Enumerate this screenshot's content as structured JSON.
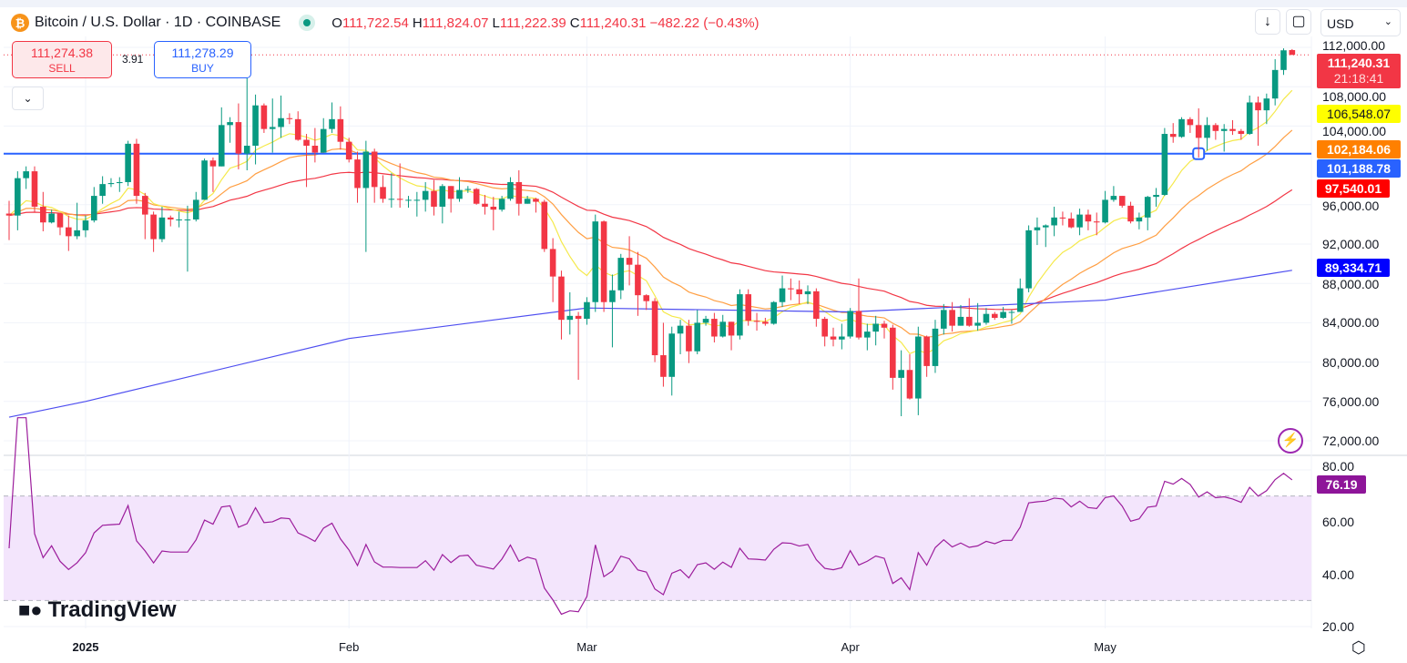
{
  "header": {
    "symbol_title": "Bitcoin / U.S. Dollar · 1D · COINBASE",
    "icon": "bitcoin-icon",
    "market_status": "open",
    "open_label": "O",
    "open": "111,722.54",
    "high_label": "H",
    "high": "111,824.07",
    "low_label": "L",
    "low": "111,222.39",
    "close_label": "C",
    "close": "111,240.31",
    "change": "−482.22 (−0.43%)"
  },
  "trade": {
    "sell_price": "111,274.38",
    "sell_label": "SELL",
    "spread": "3.91",
    "buy_price": "111,278.29",
    "buy_label": "BUY"
  },
  "toolbar": {
    "currency": "USD"
  },
  "logo": "TradingView",
  "colors": {
    "up": "#089981",
    "down": "#f23645",
    "ma_fast": "#f5e94a",
    "ma_mid": "#ff9f43",
    "ma_slow": "#f23645",
    "ma_long": "#4e4ef0",
    "hline": "#2962ff",
    "rsi": "#9c1d9c",
    "rsi_band": "#f3e5fc"
  },
  "chart_data": {
    "type": "candlestick",
    "price_axis": {
      "ticks": [
        "112,000.00",
        "108,000.00",
        "104,000.00",
        "96,000.00",
        "92,000.00",
        "88,000.00",
        "84,000.00",
        "80,000.00",
        "76,000.00",
        "72,000.00"
      ],
      "range": [
        72000,
        112000
      ]
    },
    "x_axis": {
      "ticks": [
        "2025",
        "Feb",
        "Mar",
        "Apr",
        "May"
      ]
    },
    "price_tags": {
      "last": "111,240.31",
      "countdown": "21:18:41",
      "ma_fast": "106,548.07",
      "ma_mid": "102,184.06",
      "hline": "101,188.78",
      "ma_slow": "97,540.01",
      "ma_long": "89,334.71"
    },
    "horizontal_line": 101188.78,
    "candles": [
      [
        "2024-12-23",
        95100,
        96400,
        92400,
        94900
      ],
      [
        "2024-12-24",
        94900,
        99400,
        93400,
        98700
      ],
      [
        "2024-12-25",
        98700,
        99900,
        97600,
        99400
      ],
      [
        "2024-12-26",
        99400,
        99900,
        95200,
        95800
      ],
      [
        "2024-12-27",
        95800,
        97300,
        93300,
        94200
      ],
      [
        "2024-12-28",
        94200,
        95500,
        94100,
        95100
      ],
      [
        "2024-12-29",
        95100,
        95200,
        92900,
        93700
      ],
      [
        "2024-12-30",
        93700,
        94900,
        91300,
        92800
      ],
      [
        "2024-12-31",
        92800,
        96200,
        92500,
        93400
      ],
      [
        "2025-01-01",
        93400,
        94900,
        92700,
        94400
      ],
      [
        "2025-01-02",
        94400,
        97800,
        94200,
        96900
      ],
      [
        "2025-01-03",
        96900,
        98900,
        96100,
        98100
      ],
      [
        "2025-01-04",
        98100,
        98700,
        97800,
        98200
      ],
      [
        "2025-01-05",
        98200,
        98800,
        97300,
        98300
      ],
      [
        "2025-01-06",
        98300,
        102500,
        97900,
        102200
      ],
      [
        "2025-01-07",
        102200,
        102700,
        96100,
        96900
      ],
      [
        "2025-01-08",
        96900,
        97200,
        92500,
        95000
      ],
      [
        "2025-01-09",
        95000,
        95300,
        91200,
        92500
      ],
      [
        "2025-01-10",
        92500,
        95800,
        92200,
        94700
      ],
      [
        "2025-01-11",
        94700,
        94900,
        93800,
        94500
      ],
      [
        "2025-01-12",
        94500,
        95300,
        93700,
        94500
      ],
      [
        "2025-01-13",
        94500,
        95900,
        89200,
        94500
      ],
      [
        "2025-01-14",
        94500,
        97300,
        94300,
        96500
      ],
      [
        "2025-01-15",
        96500,
        100700,
        96500,
        100500
      ],
      [
        "2025-01-16",
        100500,
        100800,
        97300,
        99900
      ],
      [
        "2025-01-17",
        99900,
        105900,
        99900,
        104100
      ],
      [
        "2025-01-18",
        104100,
        104900,
        102300,
        104400
      ],
      [
        "2025-01-19",
        104400,
        106300,
        99600,
        101200
      ],
      [
        "2025-01-20",
        101200,
        109400,
        99500,
        102000
      ],
      [
        "2025-01-21",
        102000,
        107200,
        100100,
        106100
      ],
      [
        "2025-01-22",
        106100,
        106300,
        103300,
        103700
      ],
      [
        "2025-01-23",
        103700,
        106800,
        101300,
        103900
      ],
      [
        "2025-01-24",
        103900,
        107100,
        102800,
        104800
      ],
      [
        "2025-01-25",
        104800,
        105300,
        104200,
        104700
      ],
      [
        "2025-01-26",
        104700,
        105500,
        102500,
        102600
      ],
      [
        "2025-01-27",
        102600,
        103200,
        97800,
        102000
      ],
      [
        "2025-01-28",
        102000,
        103800,
        100300,
        101300
      ],
      [
        "2025-01-29",
        101300,
        104800,
        101300,
        103700
      ],
      [
        "2025-01-30",
        103700,
        106400,
        103300,
        104700
      ],
      [
        "2025-01-31",
        104700,
        106000,
        101600,
        102400
      ],
      [
        "2025-02-01",
        102400,
        102800,
        100300,
        100600
      ],
      [
        "2025-02-02",
        100600,
        101400,
        96200,
        97700
      ],
      [
        "2025-02-03",
        97700,
        102500,
        91200,
        101400
      ],
      [
        "2025-02-04",
        101400,
        101700,
        96200,
        97800
      ],
      [
        "2025-02-05",
        97800,
        99000,
        96200,
        96600
      ],
      [
        "2025-02-06",
        96600,
        99200,
        95700,
        96600
      ],
      [
        "2025-02-07",
        96600,
        100200,
        95700,
        96500
      ],
      [
        "2025-02-08",
        96500,
        96900,
        95700,
        96500
      ],
      [
        "2025-02-09",
        96500,
        97300,
        94800,
        96500
      ],
      [
        "2025-02-10",
        96500,
        98300,
        95300,
        97400
      ],
      [
        "2025-02-11",
        97400,
        98500,
        94900,
        95800
      ],
      [
        "2025-02-12",
        95800,
        98100,
        94100,
        97900
      ],
      [
        "2025-02-13",
        97900,
        97900,
        95200,
        96600
      ],
      [
        "2025-02-14",
        96600,
        98800,
        96300,
        97500
      ],
      [
        "2025-02-15",
        97500,
        97900,
        97200,
        97600
      ],
      [
        "2025-02-16",
        97600,
        97700,
        96000,
        96100
      ],
      [
        "2025-02-17",
        96100,
        97000,
        95000,
        95800
      ],
      [
        "2025-02-18",
        95800,
        96800,
        93400,
        95500
      ],
      [
        "2025-02-19",
        95500,
        96900,
        95300,
        96600
      ],
      [
        "2025-02-20",
        96600,
        98800,
        96400,
        98300
      ],
      [
        "2025-02-21",
        98300,
        99500,
        94900,
        96100
      ],
      [
        "2025-02-22",
        96100,
        96900,
        96100,
        96600
      ],
      [
        "2025-02-23",
        96600,
        96700,
        95200,
        96300
      ],
      [
        "2025-02-24",
        96300,
        96500,
        91200,
        91500
      ],
      [
        "2025-02-25",
        91500,
        92600,
        86100,
        88700
      ],
      [
        "2025-02-26",
        88700,
        89300,
        82300,
        84300
      ],
      [
        "2025-02-27",
        84300,
        87100,
        82800,
        84700
      ],
      [
        "2025-02-28",
        84700,
        85100,
        78200,
        84400
      ],
      [
        "2025-03-01",
        84400,
        86600,
        83800,
        86100
      ],
      [
        "2025-03-02",
        86100,
        95000,
        85100,
        94300
      ],
      [
        "2025-03-03",
        94300,
        94400,
        85100,
        86100
      ],
      [
        "2025-03-04",
        86100,
        88900,
        81500,
        87300
      ],
      [
        "2025-03-05",
        87300,
        91000,
        86400,
        90600
      ],
      [
        "2025-03-06",
        90600,
        92800,
        87800,
        89900
      ],
      [
        "2025-03-07",
        89900,
        91200,
        84700,
        86800
      ],
      [
        "2025-03-08",
        86800,
        86900,
        85300,
        86200
      ],
      [
        "2025-03-09",
        86200,
        86500,
        80000,
        80700
      ],
      [
        "2025-03-10",
        80700,
        84000,
        77500,
        78500
      ],
      [
        "2025-03-11",
        78500,
        83600,
        76600,
        82900
      ],
      [
        "2025-03-12",
        82900,
        84300,
        80800,
        83700
      ],
      [
        "2025-03-13",
        83700,
        84300,
        79900,
        81100
      ],
      [
        "2025-03-14",
        81100,
        85300,
        80800,
        84000
      ],
      [
        "2025-03-15",
        84000,
        84700,
        83700,
        84400
      ],
      [
        "2025-03-16",
        84400,
        85000,
        82000,
        82600
      ],
      [
        "2025-03-17",
        82600,
        84800,
        82500,
        84100
      ],
      [
        "2025-03-18",
        84100,
        84100,
        81200,
        82700
      ],
      [
        "2025-03-19",
        82700,
        87400,
        82300,
        86900
      ],
      [
        "2025-03-20",
        86900,
        87400,
        83700,
        84200
      ],
      [
        "2025-03-21",
        84200,
        85000,
        83200,
        84100
      ],
      [
        "2025-03-22",
        84100,
        84500,
        83700,
        83900
      ],
      [
        "2025-03-23",
        83900,
        86200,
        83800,
        86100
      ],
      [
        "2025-03-24",
        86100,
        88800,
        85600,
        87500
      ],
      [
        "2025-03-25",
        87500,
        88500,
        86300,
        87400
      ],
      [
        "2025-03-26",
        87400,
        88300,
        85900,
        86900
      ],
      [
        "2025-03-27",
        86900,
        87800,
        85900,
        87200
      ],
      [
        "2025-03-28",
        87200,
        87500,
        83600,
        84400
      ],
      [
        "2025-03-29",
        84400,
        84600,
        81600,
        82600
      ],
      [
        "2025-03-30",
        82600,
        83500,
        81600,
        82300
      ],
      [
        "2025-03-31",
        82300,
        83900,
        81300,
        82600
      ],
      [
        "2025-04-01",
        82600,
        85500,
        82400,
        85200
      ],
      [
        "2025-04-02",
        85200,
        88500,
        82300,
        82500
      ],
      [
        "2025-04-03",
        82500,
        83900,
        81200,
        83100
      ],
      [
        "2025-04-04",
        83100,
        84700,
        81700,
        83900
      ],
      [
        "2025-04-05",
        83900,
        84200,
        82400,
        83500
      ],
      [
        "2025-04-06",
        83500,
        83800,
        77200,
        78400
      ],
      [
        "2025-04-07",
        78400,
        81200,
        74500,
        79200
      ],
      [
        "2025-04-08",
        79200,
        80800,
        76200,
        76300
      ],
      [
        "2025-04-09",
        76300,
        83600,
        74600,
        82600
      ],
      [
        "2025-04-10",
        82600,
        82700,
        78500,
        79600
      ],
      [
        "2025-04-11",
        79600,
        84300,
        78900,
        83400
      ],
      [
        "2025-04-12",
        83400,
        85900,
        82800,
        85300
      ],
      [
        "2025-04-13",
        85300,
        86100,
        83100,
        83700
      ],
      [
        "2025-04-14",
        83700,
        85800,
        83700,
        84600
      ],
      [
        "2025-04-15",
        84600,
        86500,
        83600,
        83700
      ],
      [
        "2025-04-16",
        83700,
        86000,
        83200,
        84000
      ],
      [
        "2025-04-17",
        84000,
        85500,
        83800,
        84900
      ],
      [
        "2025-04-18",
        84900,
        85100,
        84300,
        84500
      ],
      [
        "2025-04-19",
        84500,
        85600,
        84400,
        85100
      ],
      [
        "2025-04-20",
        85100,
        85300,
        83900,
        85100
      ],
      [
        "2025-04-21",
        85100,
        88500,
        85100,
        87500
      ],
      [
        "2025-04-22",
        87500,
        93900,
        87100,
        93400
      ],
      [
        "2025-04-23",
        93400,
        94700,
        91900,
        93700
      ],
      [
        "2025-04-24",
        93700,
        94000,
        91700,
        93900
      ],
      [
        "2025-04-25",
        93900,
        95800,
        92800,
        94700
      ],
      [
        "2025-04-26",
        94700,
        95300,
        93900,
        94600
      ],
      [
        "2025-04-27",
        94600,
        95200,
        93600,
        93700
      ],
      [
        "2025-04-28",
        93700,
        95600,
        92900,
        95000
      ],
      [
        "2025-04-29",
        95000,
        95500,
        93400,
        94300
      ],
      [
        "2025-04-30",
        94300,
        95200,
        92900,
        94200
      ],
      [
        "2025-05-01",
        94200,
        97400,
        94100,
        96500
      ],
      [
        "2025-05-02",
        96500,
        97900,
        96300,
        96900
      ],
      [
        "2025-05-03",
        96900,
        96900,
        95700,
        95900
      ],
      [
        "2025-05-04",
        95900,
        96300,
        94100,
        94300
      ],
      [
        "2025-05-05",
        94300,
        95200,
        93500,
        94700
      ],
      [
        "2025-05-06",
        94700,
        96900,
        93400,
        96800
      ],
      [
        "2025-05-07",
        96800,
        97700,
        95800,
        97000
      ],
      [
        "2025-05-08",
        97000,
        103800,
        96900,
        103200
      ],
      [
        "2025-05-09",
        103200,
        104300,
        102300,
        102900
      ],
      [
        "2025-05-10",
        102900,
        104900,
        102800,
        104700
      ],
      [
        "2025-05-11",
        104700,
        104900,
        103300,
        104100
      ],
      [
        "2025-05-12",
        104100,
        105800,
        100800,
        102800
      ],
      [
        "2025-05-13",
        102800,
        104900,
        101500,
        104100
      ],
      [
        "2025-05-14",
        104100,
        104300,
        102600,
        103500
      ],
      [
        "2025-05-15",
        103500,
        104200,
        101400,
        103700
      ],
      [
        "2025-05-16",
        103700,
        104600,
        103100,
        103500
      ],
      [
        "2025-05-17",
        103500,
        103700,
        102600,
        103200
      ],
      [
        "2025-05-18",
        103200,
        107100,
        103100,
        106400
      ],
      [
        "2025-05-19",
        106400,
        107000,
        102000,
        105600
      ],
      [
        "2025-05-20",
        105600,
        107300,
        104200,
        106800
      ],
      [
        "2025-05-21",
        106800,
        110800,
        106100,
        109700
      ],
      [
        "2025-05-22",
        109700,
        111900,
        109200,
        111700
      ],
      [
        "2025-05-23",
        111722.54,
        111824.07,
        111222.39,
        111240.31
      ]
    ],
    "ma_long_points": [
      [
        "2024-12-23",
        74400
      ],
      [
        "2025-01-01",
        76000
      ],
      [
        "2025-02-01",
        82400
      ],
      [
        "2025-03-01",
        85500
      ],
      [
        "2025-04-01",
        85100
      ],
      [
        "2025-05-01",
        86300
      ],
      [
        "2025-05-23",
        89334.71
      ]
    ],
    "rsi": {
      "axis_ticks": [
        "80.00",
        "60.00",
        "40.00",
        "20.00"
      ],
      "range": [
        20,
        80
      ],
      "band": [
        30,
        70
      ],
      "last": "76.19"
    }
  }
}
